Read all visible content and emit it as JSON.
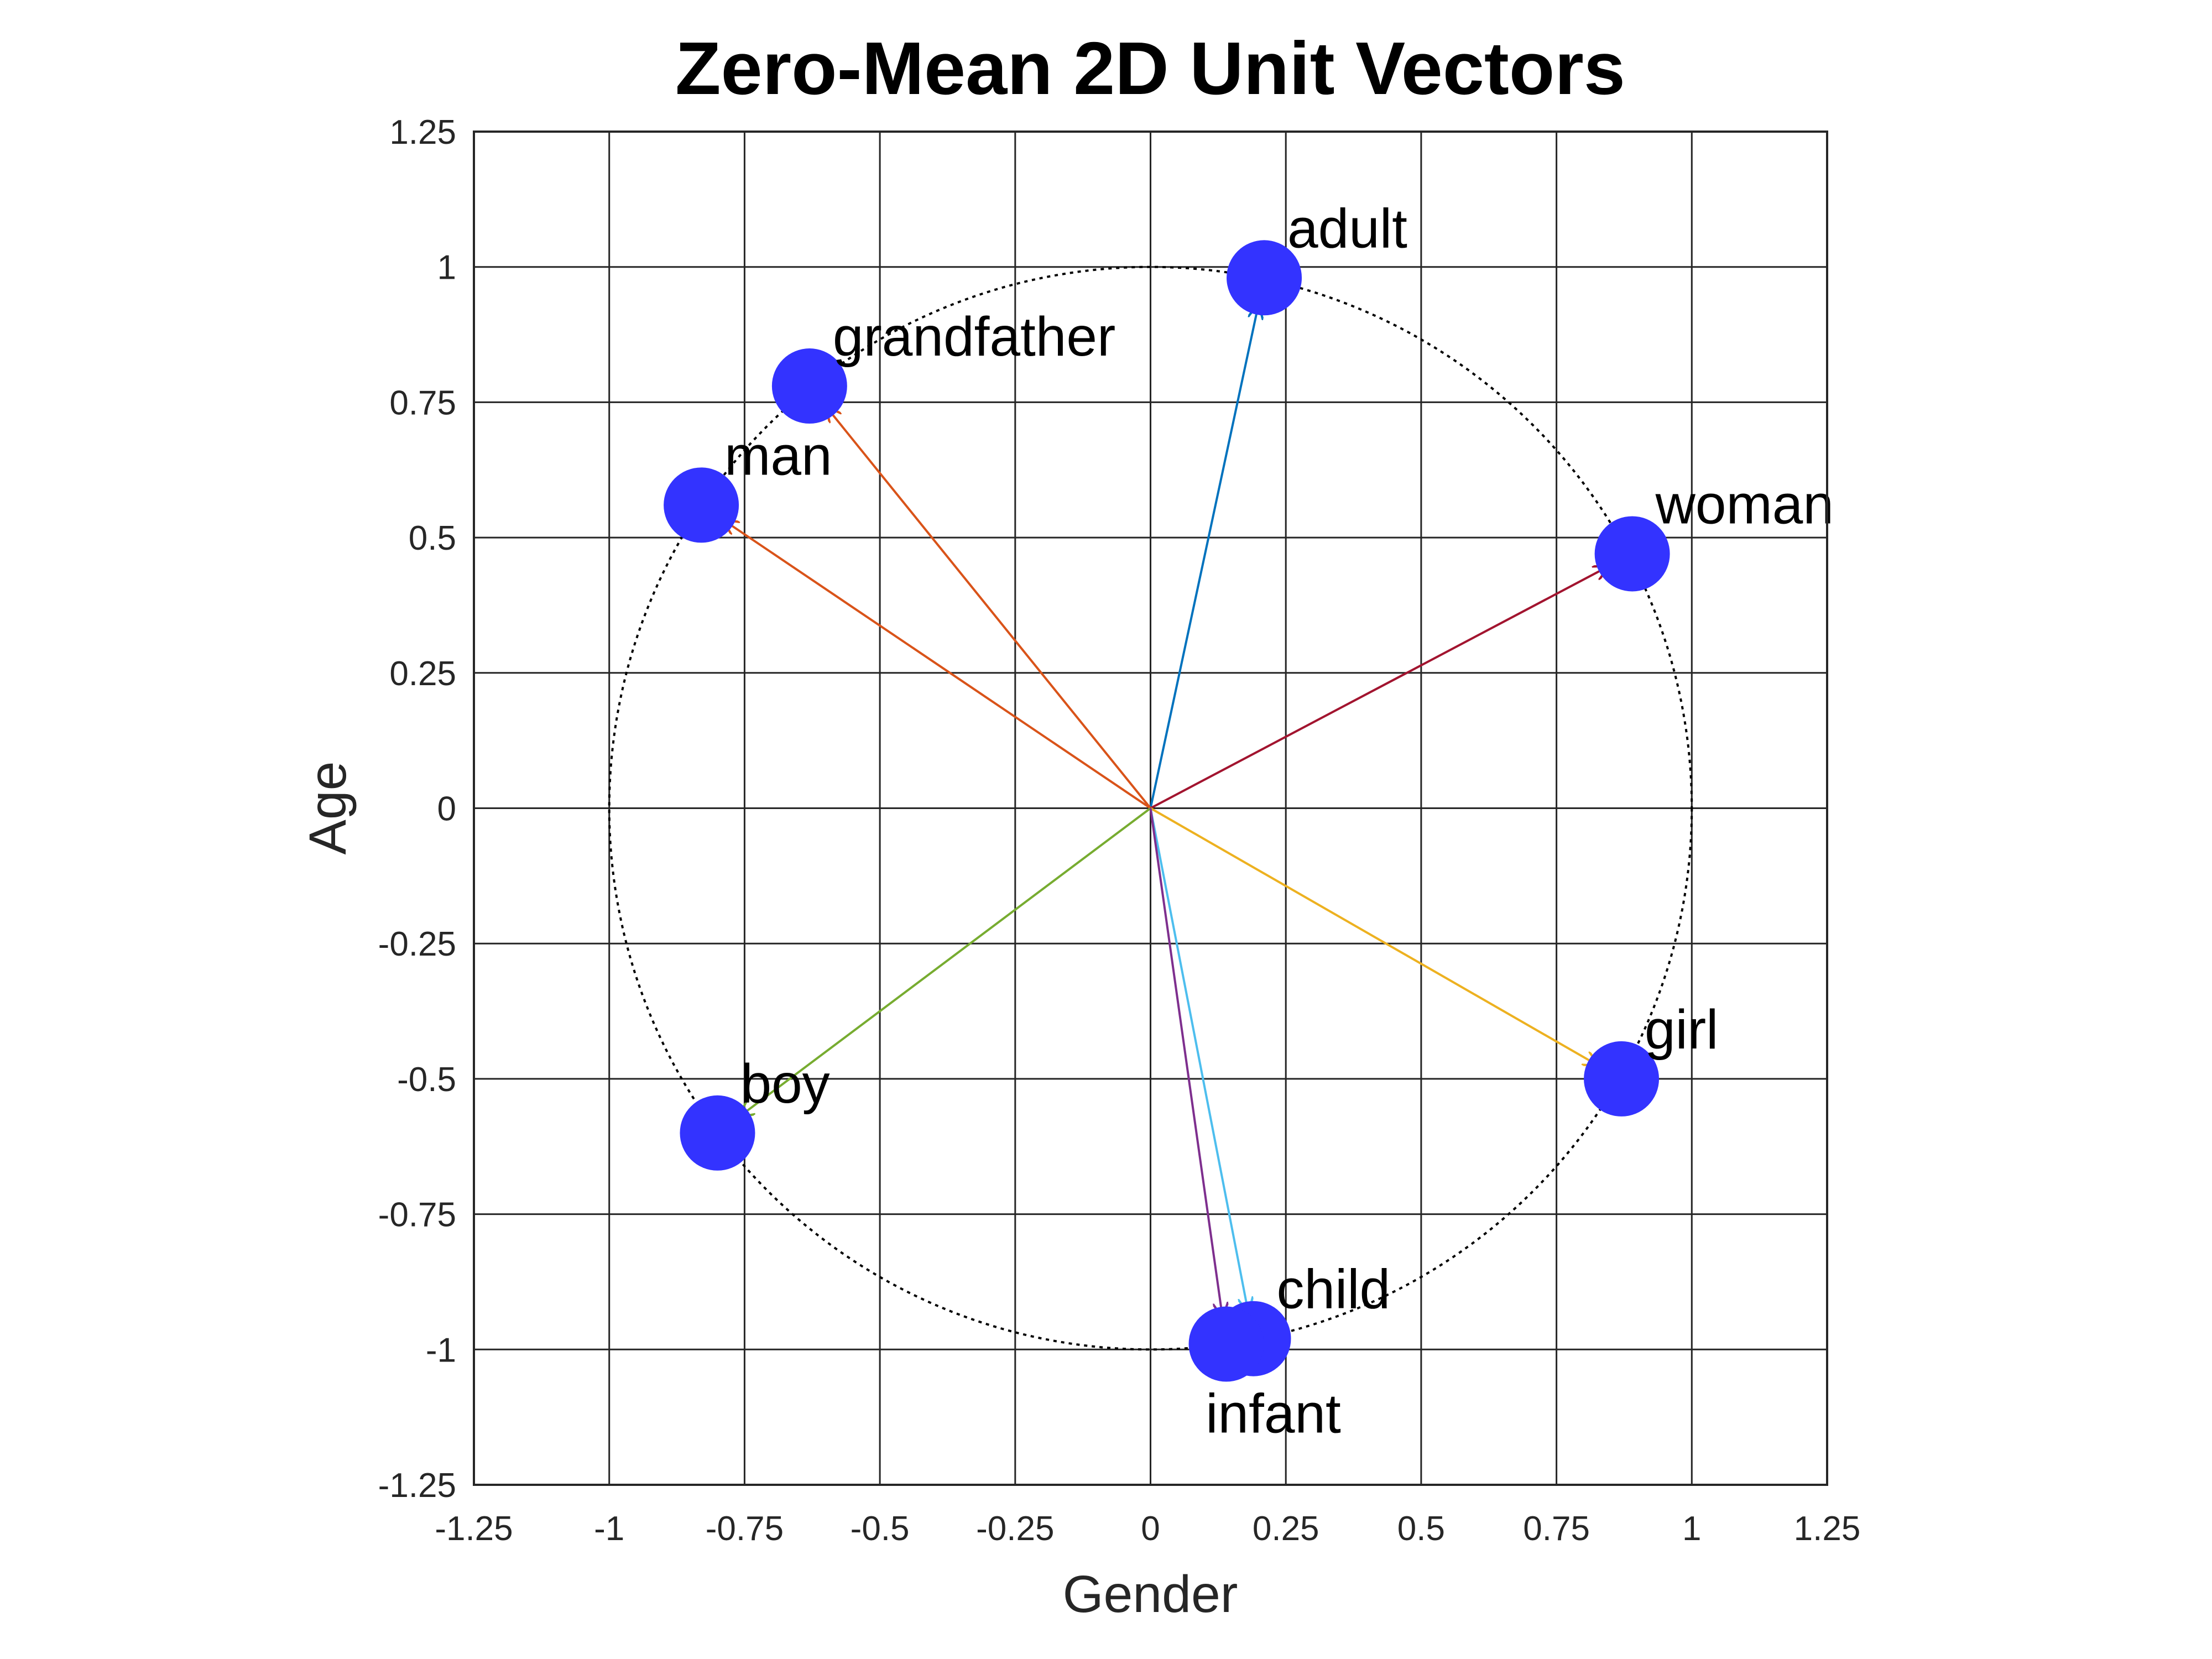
{
  "chart_data": {
    "type": "scatter",
    "title": "Zero-Mean 2D Unit Vectors",
    "xlabel": "Gender",
    "ylabel": "Age",
    "xlim": [
      -1.25,
      1.25
    ],
    "ylim": [
      -1.25,
      1.25
    ],
    "grid": true,
    "x_ticks": [
      -1.25,
      -1,
      -0.75,
      -0.5,
      -0.25,
      0,
      0.25,
      0.5,
      0.75,
      1,
      1.25
    ],
    "x_tick_labels": [
      "-1.25",
      "-1",
      "-0.75",
      "-0.5",
      "-0.25",
      "0",
      "0.25",
      "0.5",
      "0.75",
      "1",
      "1.25"
    ],
    "y_ticks": [
      1.25,
      1,
      0.75,
      0.5,
      0.25,
      0,
      -0.25,
      -0.5,
      -0.75,
      -1,
      -1.25
    ],
    "y_tick_labels": [
      "1.25",
      "1",
      "0.75",
      "0.5",
      "0.25",
      "0",
      "-0.25",
      "-0.5",
      "-0.75",
      "-1",
      "-1.25"
    ],
    "unit_circle": true,
    "marker_color": "#3333ff",
    "points": [
      {
        "label": "adult",
        "x": 0.21,
        "y": 0.98,
        "color": "#0072bd",
        "label_pos": "above-right"
      },
      {
        "label": "grandfather",
        "x": -0.63,
        "y": 0.78,
        "color": "#d95319",
        "label_pos": "above-right"
      },
      {
        "label": "man",
        "x": -0.83,
        "y": 0.56,
        "color": "#d95319",
        "label_pos": "above-right"
      },
      {
        "label": "woman",
        "x": 0.89,
        "y": 0.47,
        "color": "#a2142f",
        "label_pos": "above-right"
      },
      {
        "label": "girl",
        "x": 0.87,
        "y": -0.5,
        "color": "#edb120",
        "label_pos": "above-right"
      },
      {
        "label": "boy",
        "x": -0.8,
        "y": -0.6,
        "color": "#77ac30",
        "label_pos": "above-right"
      },
      {
        "label": "child",
        "x": 0.19,
        "y": -0.98,
        "color": "#4dbeee",
        "label_pos": "above-right"
      },
      {
        "label": "infant",
        "x": 0.14,
        "y": -0.99,
        "color": "#7e2f8e",
        "label_pos": "below"
      }
    ]
  }
}
